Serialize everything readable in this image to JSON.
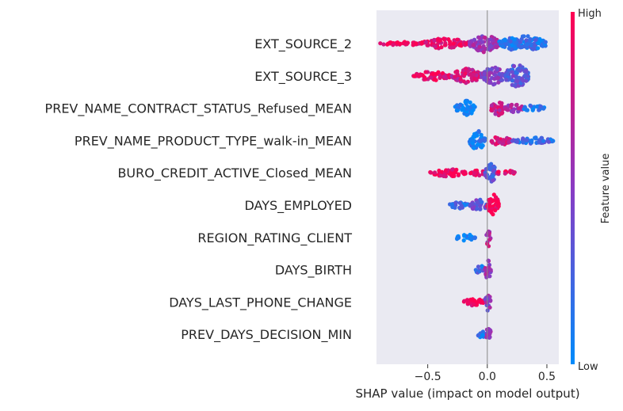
{
  "chart_data": {
    "type": "scatter",
    "subtype": "shap-beeswarm",
    "title": "",
    "xlabel": "SHAP value (impact on model output)",
    "xlim": [
      -0.93,
      0.6
    ],
    "xticks": [
      {
        "value": -0.5,
        "label": "−0.5"
      },
      {
        "value": 0.0,
        "label": "0.0"
      },
      {
        "value": 0.5,
        "label": "0.5"
      }
    ],
    "zero_line": 0.0,
    "grid": false,
    "colorbar": {
      "label": "Feature value",
      "high_label": "High",
      "low_label": "Low",
      "high_color": "#ff0052",
      "low_color": "#008bfb"
    },
    "features": [
      {
        "name": "EXT_SOURCE_2",
        "clusters": [
          {
            "min": -0.9,
            "max": -0.55,
            "spread": 0.04,
            "color": 0.95
          },
          {
            "min": -0.55,
            "max": -0.15,
            "spread": 0.35,
            "color": 0.9
          },
          {
            "min": -0.15,
            "max": 0.1,
            "spread": 0.7,
            "color": 0.55
          },
          {
            "min": 0.1,
            "max": 0.5,
            "spread": 0.6,
            "color": 0.15
          }
        ]
      },
      {
        "name": "EXT_SOURCE_3",
        "clusters": [
          {
            "min": -0.62,
            "max": -0.3,
            "spread": 0.3,
            "color": 0.92
          },
          {
            "min": -0.3,
            "max": -0.05,
            "spread": 0.55,
            "color": 0.8
          },
          {
            "min": -0.05,
            "max": 0.15,
            "spread": 0.7,
            "color": 0.5
          },
          {
            "min": 0.15,
            "max": 0.35,
            "spread": 0.95,
            "color": 0.3
          }
        ]
      },
      {
        "name": "PREV_NAME_CONTRACT_STATUS_Refused_MEAN",
        "clusters": [
          {
            "min": -0.27,
            "max": -0.1,
            "spread": 0.6,
            "color": 0.05
          },
          {
            "min": 0.03,
            "max": 0.15,
            "spread": 0.55,
            "color": 0.75
          },
          {
            "min": 0.15,
            "max": 0.3,
            "spread": 0.25,
            "color": 0.6
          },
          {
            "min": 0.3,
            "max": 0.48,
            "spread": 0.15,
            "color": 0.1
          }
        ]
      },
      {
        "name": "PREV_NAME_PRODUCT_TYPE_walk-in_MEAN",
        "clusters": [
          {
            "min": -0.15,
            "max": -0.02,
            "spread": 0.8,
            "color": 0.05
          },
          {
            "min": 0.02,
            "max": 0.2,
            "spread": 0.3,
            "color": 0.85
          },
          {
            "min": 0.2,
            "max": 0.56,
            "spread": 0.15,
            "color": 0.2
          }
        ]
      },
      {
        "name": "BURO_CREDIT_ACTIVE_Closed_MEAN",
        "clusters": [
          {
            "min": -0.48,
            "max": -0.18,
            "spread": 0.22,
            "color": 0.97
          },
          {
            "min": -0.15,
            "max": -0.02,
            "spread": 0.12,
            "color": 0.9
          },
          {
            "min": -0.02,
            "max": 0.08,
            "spread": 0.8,
            "color": 0.3
          },
          {
            "min": 0.08,
            "max": 0.23,
            "spread": 0.12,
            "color": 0.9
          }
        ]
      },
      {
        "name": "DAYS_EMPLOYED",
        "clusters": [
          {
            "min": -0.32,
            "max": -0.15,
            "spread": 0.18,
            "color": 0.2
          },
          {
            "min": -0.15,
            "max": 0.0,
            "spread": 0.4,
            "color": 0.35
          },
          {
            "min": 0.0,
            "max": 0.1,
            "spread": 0.95,
            "color": 0.97
          }
        ]
      },
      {
        "name": "REGION_RATING_CLIENT",
        "clusters": [
          {
            "min": -0.27,
            "max": -0.1,
            "spread": 0.15,
            "color": 0.05
          },
          {
            "min": -0.01,
            "max": 0.03,
            "spread": 0.7,
            "color": 0.7
          }
        ]
      },
      {
        "name": "DAYS_BIRTH",
        "clusters": [
          {
            "min": -0.1,
            "max": -0.02,
            "spread": 0.3,
            "color": 0.2
          },
          {
            "min": -0.02,
            "max": 0.03,
            "spread": 0.8,
            "color": 0.6
          }
        ]
      },
      {
        "name": "DAYS_LAST_PHONE_CHANGE",
        "clusters": [
          {
            "min": -0.2,
            "max": -0.03,
            "spread": 0.2,
            "color": 0.95
          },
          {
            "min": -0.02,
            "max": 0.03,
            "spread": 0.8,
            "color": 0.5
          }
        ]
      },
      {
        "name": "PREV_DAYS_DECISION_MIN",
        "clusters": [
          {
            "min": -0.08,
            "max": -0.01,
            "spread": 0.25,
            "color": 0.15
          },
          {
            "min": -0.01,
            "max": 0.03,
            "spread": 0.8,
            "color": 0.6
          }
        ]
      }
    ]
  }
}
